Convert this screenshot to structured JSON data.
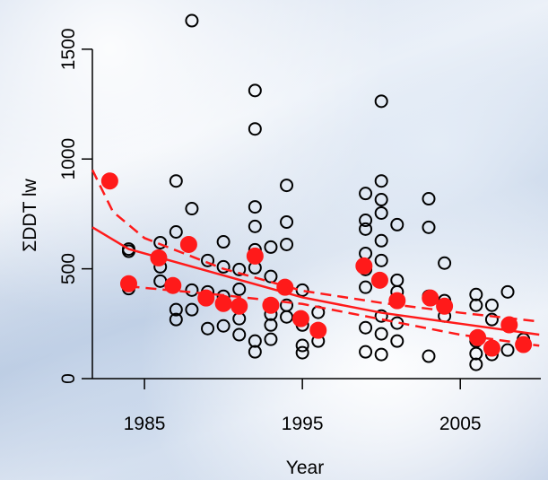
{
  "chart_data": {
    "type": "scatter",
    "x_label": "Year",
    "y_label": "ΣDDT lw",
    "xlim": [
      1981.7,
      2010.1
    ],
    "ylim": [
      0,
      1720
    ],
    "xticks": [
      1985,
      1995,
      2005
    ],
    "yticks": [
      0,
      500,
      1000,
      1500
    ],
    "series": [
      {
        "style": "open-circle",
        "color": "#000000",
        "x": [
          1984,
          1984,
          1984,
          1986,
          1986,
          1986,
          1987,
          1987,
          1987,
          1987,
          1988,
          1988,
          1988,
          1988,
          1989,
          1989,
          1989,
          1990,
          1990,
          1990,
          1990,
          1991,
          1991,
          1991,
          1991,
          1992,
          1992,
          1992,
          1992,
          1992,
          1992,
          1992,
          1992,
          1993,
          1993,
          1993,
          1993,
          1993,
          1994,
          1994,
          1994,
          1994,
          1994,
          1995,
          1995,
          1995,
          1995,
          1996,
          1996,
          1999,
          1999,
          1999,
          1999,
          1999,
          1999,
          1999,
          1999,
          2000,
          2000,
          2000,
          2000,
          2000,
          2000,
          2000,
          2000,
          2000,
          2001,
          2001,
          2001,
          2001,
          2001,
          2003,
          2003,
          2003,
          2003,
          2004,
          2004,
          2004,
          2006,
          2006,
          2006,
          2006,
          2006,
          2007,
          2007,
          2007,
          2008,
          2008,
          2009,
          2009
        ],
        "values": [
          590,
          580,
          410,
          619,
          509,
          444,
          900,
          668,
          314,
          269,
          1630,
          774,
          314,
          403,
          538,
          395,
          228,
          623,
          509,
          375,
          240,
          497,
          407,
          273,
          200,
          1312,
          1137,
          782,
          693,
          587,
          505,
          171,
          122,
          599,
          465,
          293,
          179,
          244,
          880,
          713,
          611,
          334,
          281,
          403,
          151,
          118,
          244,
          302,
          171,
          843,
          721,
          681,
          570,
          497,
          416,
          232,
          122,
          1263,
          900,
          815,
          754,
          628,
          538,
          285,
          110,
          204,
          701,
          448,
          395,
          171,
          253,
          819,
          689,
          375,
          102,
          526,
          355,
          285,
          383,
          334,
          171,
          114,
          65,
          334,
          269,
          110,
          395,
          130,
          179,
          159
        ]
      },
      {
        "style": "filled-circle",
        "color": "#ff1a1a",
        "x": [
          1982.8,
          1984,
          1985.9,
          1986.8,
          1987.8,
          1988.9,
          1990,
          1991,
          1992,
          1993,
          1993.9,
          1994.9,
          1996,
          1998.9,
          1999.9,
          2001,
          2003.1,
          2004,
          2006.1,
          2007,
          2008.1,
          2009
        ],
        "values": [
          900,
          432,
          550,
          424,
          611,
          367,
          342,
          330,
          558,
          334,
          416,
          273,
          220,
          513,
          448,
          355,
          367,
          330,
          187,
          139,
          245,
          155
        ]
      },
      {
        "style": "solid",
        "color": "#ff1a1a",
        "x": [
          1981.7,
          1984,
          1990,
          1995,
          2000,
          2005,
          2010
        ],
        "values": [
          689,
          590,
          470,
          370,
          300,
          250,
          200
        ]
      },
      {
        "style": "dashed",
        "color": "#ff1a1a",
        "x": [
          1981.7,
          1983,
          1985,
          1990,
          1995,
          2000,
          2005,
          2010
        ],
        "values": [
          950,
          760,
          640,
          500,
          400,
          345,
          300,
          260
        ]
      },
      {
        "style": "dashed",
        "color": "#ff1a1a",
        "x": [
          1984,
          1990,
          1995,
          2000,
          2005,
          2010
        ],
        "values": [
          420,
          380,
          340,
          270,
          200,
          150
        ]
      }
    ]
  }
}
